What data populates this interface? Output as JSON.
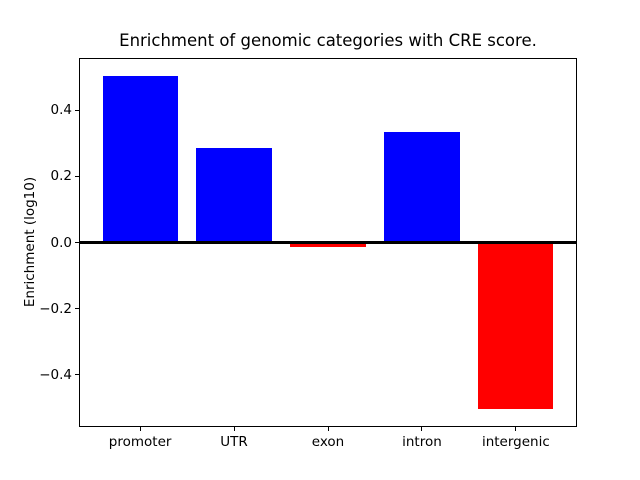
{
  "figure": {
    "background": "#ffffff",
    "text_color": "#000000",
    "axes_color": "#000000"
  },
  "chart_data": {
    "type": "bar",
    "title": "Enrichment of genomic categories with CRE score.",
    "xlabel": "",
    "ylabel": "Enrichment (log10)",
    "categories": [
      "promoter",
      "UTR",
      "exon",
      "intron",
      "intergenic"
    ],
    "values": [
      0.505,
      0.287,
      -0.015,
      0.334,
      -0.503
    ],
    "bar_colors": [
      "#0000ff",
      "#0000ff",
      "#ff0000",
      "#0000ff",
      "#ff0000"
    ],
    "positive_color": "#0000ff",
    "negative_color": "#ff0000",
    "yticks": [
      0.4,
      0.2,
      0.0,
      -0.2,
      -0.4
    ],
    "ytick_labels": [
      "0.4",
      "0.2",
      "0.0",
      "−0.2",
      "−0.4"
    ],
    "ylim": [
      -0.555,
      0.555
    ],
    "xlim": [
      -0.64,
      4.64
    ],
    "bar_width": 0.8,
    "grid": false,
    "zero_line": true,
    "legend_position": "none"
  }
}
